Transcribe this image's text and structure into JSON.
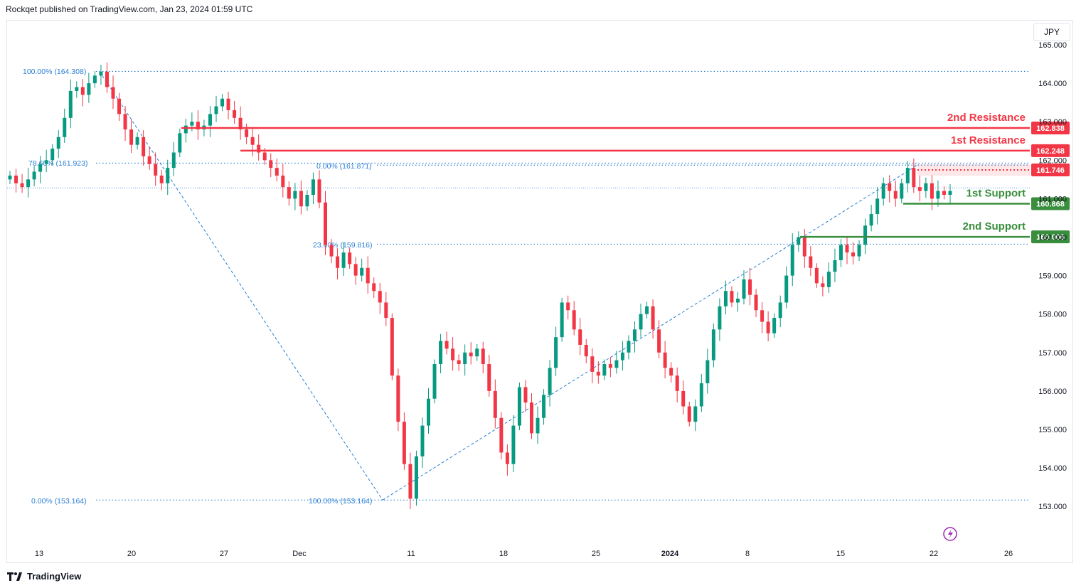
{
  "header": {
    "text": "Rockqet published on TradingView.com, Jan 23, 2024 01:59 UTC"
  },
  "currency": "JPY",
  "footer": {
    "brand": "TradingView"
  },
  "colors": {
    "up": "#089981",
    "down": "#f23645",
    "resistance": "#f23645",
    "support": "#388e3c",
    "fib": "#2a7fd4",
    "grid_text": "#131722"
  },
  "chart_data": {
    "type": "candlestick",
    "ylim": [
      152.6,
      165.25
    ],
    "y_ticks": [
      "165.000",
      "164.000",
      "163.000",
      "162.000",
      "161.000",
      "160.000",
      "159.000",
      "158.000",
      "157.000",
      "156.000",
      "155.000",
      "154.000",
      "153.000"
    ],
    "x_ticks": [
      "13",
      "20",
      "27",
      "Dec",
      "11",
      "18",
      "25",
      "2024",
      "8",
      "15",
      "22",
      "26"
    ],
    "levels": [
      {
        "name": "2nd Resistance",
        "value": 162.838,
        "label": "162.838",
        "kind": "resistance"
      },
      {
        "name": "1st Resistance",
        "value": 162.248,
        "label": "162.248",
        "kind": "resistance"
      },
      {
        "name": "",
        "value": 161.746,
        "label": "161.746",
        "kind": "current"
      },
      {
        "name": "1st Support",
        "value": 160.868,
        "label": "160.868",
        "kind": "support"
      },
      {
        "name": "2nd Support",
        "value": 160.006,
        "label": "160.006",
        "kind": "support"
      }
    ],
    "fib_labels": [
      {
        "text": "100.00% (164.308)",
        "value": 164.308
      },
      {
        "text": "78.60% (161.923)",
        "value": 161.923
      },
      {
        "text": "0.00% (161.871)",
        "value": 161.871
      },
      {
        "text": "23.60% (159.816)",
        "value": 159.816
      },
      {
        "text": "0.00% (153.164)",
        "value": 153.164
      },
      {
        "text": "100.00% (153.164)",
        "value": 153.164
      }
    ],
    "candles_close": [
      161.6,
      161.4,
      161.3,
      161.5,
      161.7,
      161.9,
      162.0,
      162.3,
      162.6,
      163.1,
      163.8,
      163.9,
      163.7,
      164.0,
      164.2,
      164.3,
      163.9,
      163.6,
      163.2,
      162.8,
      162.4,
      162.6,
      162.1,
      161.9,
      161.6,
      161.4,
      161.8,
      162.2,
      162.7,
      162.9,
      163.0,
      162.8,
      162.9,
      163.2,
      163.4,
      163.6,
      163.3,
      163.1,
      162.8,
      162.6,
      162.4,
      162.2,
      162.0,
      161.8,
      161.6,
      161.3,
      161.0,
      161.2,
      160.8,
      161.1,
      161.5,
      160.9,
      159.8,
      159.5,
      159.2,
      159.6,
      159.3,
      159.0,
      159.2,
      158.8,
      158.6,
      158.3,
      157.9,
      156.4,
      155.2,
      154.1,
      153.2,
      154.3,
      155.1,
      155.8,
      156.7,
      157.3,
      157.1,
      156.8,
      156.7,
      157.0,
      156.9,
      157.1,
      156.7,
      156.0,
      155.3,
      154.4,
      154.1,
      155.1,
      156.1,
      155.7,
      154.9,
      155.3,
      155.9,
      156.6,
      157.4,
      158.3,
      158.1,
      157.6,
      157.2,
      156.9,
      156.5,
      156.4,
      156.7,
      156.6,
      156.8,
      157.0,
      157.3,
      157.6,
      158.0,
      158.2,
      157.6,
      157.0,
      156.6,
      156.4,
      156.0,
      155.6,
      155.2,
      155.6,
      156.2,
      156.8,
      157.6,
      158.2,
      158.6,
      158.3,
      158.4,
      158.9,
      158.5,
      158.1,
      157.8,
      157.5,
      157.9,
      158.3,
      159.0,
      159.8,
      160.0,
      159.5,
      159.2,
      158.8,
      158.7,
      159.1,
      159.4,
      159.8,
      159.6,
      159.5,
      159.8,
      160.3,
      160.6,
      161.0,
      161.4,
      161.2,
      161.0,
      161.4,
      161.8,
      161.3,
      161.2,
      161.4,
      161.0,
      161.2,
      161.1,
      161.2
    ]
  }
}
